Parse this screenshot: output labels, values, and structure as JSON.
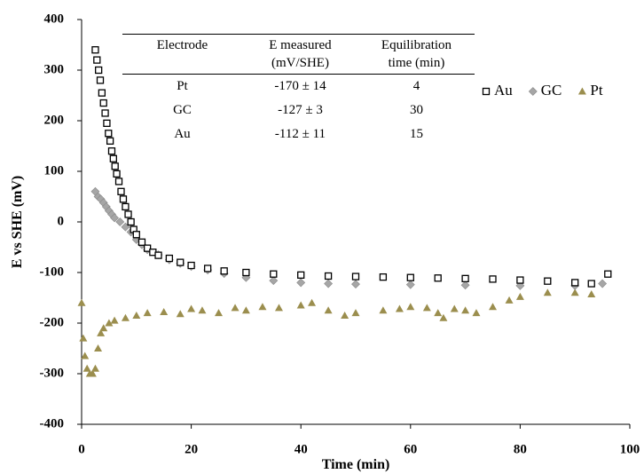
{
  "chart_data": {
    "type": "scatter",
    "x_label": "Time (min)",
    "y_label": "E vs SHE (mV)",
    "xlim": [
      0,
      100
    ],
    "xticks": [
      0,
      20,
      40,
      60,
      80,
      100
    ],
    "ylim": [
      -400,
      400
    ],
    "yticks": [
      -400,
      -300,
      -200,
      -100,
      0,
      100,
      200,
      300,
      400
    ],
    "grid": false,
    "legend": "upper right",
    "series": [
      {
        "name": "Au",
        "color": "#000000",
        "marker": "square",
        "x": [
          2.5,
          2.8,
          3.1,
          3.4,
          3.7,
          4,
          4.3,
          4.6,
          4.9,
          5.2,
          5.5,
          5.8,
          6.1,
          6.4,
          6.8,
          7.2,
          7.6,
          8,
          8.5,
          9,
          9.5,
          10,
          11,
          12,
          13,
          14,
          16,
          18,
          20,
          23,
          26,
          30,
          35,
          40,
          45,
          50,
          55,
          60,
          65,
          70,
          75,
          80,
          85,
          90,
          93,
          96
        ],
        "values": [
          340,
          320,
          300,
          280,
          255,
          235,
          215,
          195,
          175,
          160,
          140,
          125,
          110,
          95,
          80,
          60,
          45,
          30,
          15,
          0,
          -15,
          -25,
          -40,
          -52,
          -60,
          -66,
          -72,
          -80,
          -86,
          -92,
          -97,
          -100,
          -103,
          -105,
          -107,
          -108,
          -109,
          -110,
          -111,
          -112,
          -113,
          -115,
          -117,
          -120,
          -122,
          -103
        ]
      },
      {
        "name": "GC",
        "color": "#a6a6a6",
        "marker": "diamond",
        "x": [
          2.5,
          3,
          3.5,
          4,
          4.5,
          5,
          5.5,
          6,
          7,
          8,
          9,
          10,
          11,
          12,
          14,
          16,
          18,
          20,
          23,
          26,
          30,
          35,
          40,
          45,
          50,
          60,
          70,
          80,
          90,
          95
        ],
        "values": [
          60,
          50,
          45,
          38,
          30,
          22,
          15,
          8,
          0,
          -10,
          -20,
          -35,
          -45,
          -55,
          -65,
          -75,
          -82,
          -88,
          -95,
          -102,
          -110,
          -116,
          -120,
          -122,
          -123,
          -124,
          -125,
          -126,
          -126,
          -122
        ]
      },
      {
        "name": "Pt",
        "color": "#9b8e4e",
        "marker": "triangle",
        "x": [
          0,
          0.3,
          0.6,
          1,
          1.5,
          2,
          2.5,
          3,
          3.5,
          4,
          5,
          6,
          8,
          10,
          12,
          15,
          18,
          20,
          22,
          25,
          28,
          30,
          33,
          36,
          40,
          42,
          45,
          48,
          50,
          55,
          58,
          60,
          63,
          65,
          66,
          68,
          70,
          72,
          75,
          78,
          80,
          85,
          90,
          93
        ],
        "values": [
          -160,
          -230,
          -265,
          -290,
          -300,
          -300,
          -290,
          -250,
          -220,
          -210,
          -200,
          -195,
          -190,
          -185,
          -180,
          -178,
          -182,
          -172,
          -175,
          -180,
          -170,
          -175,
          -168,
          -170,
          -165,
          -160,
          -175,
          -185,
          -180,
          -175,
          -172,
          -168,
          -170,
          -180,
          -190,
          -172,
          -175,
          -180,
          -168,
          -155,
          -148,
          -140,
          -140,
          -143
        ]
      }
    ],
    "table": {
      "columns": [
        "Electrode",
        "E measured (mV/SHE)",
        "Equilibration time (min)"
      ],
      "rows": [
        [
          "Pt",
          "-170 ± 14",
          4
        ],
        [
          "GC",
          "-127 ± 3",
          30
        ],
        [
          "Au",
          "-112 ± 11",
          15
        ]
      ]
    }
  }
}
